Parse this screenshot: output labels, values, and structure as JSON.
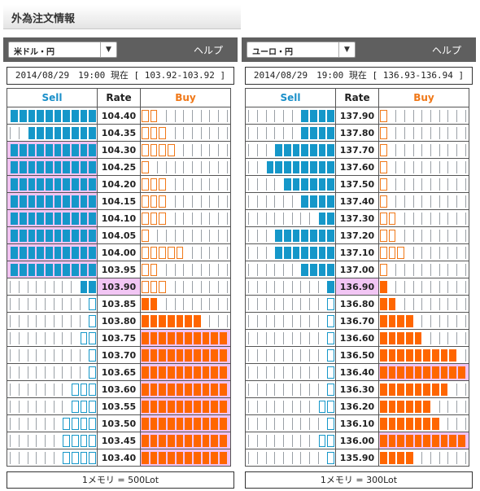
{
  "page": {
    "title": "外為注文情報"
  },
  "panels": [
    {
      "id": "usd",
      "pair_label": "米ドル・円",
      "help_label": "ヘルプ",
      "info": "2014/08/29　19:00 現在 [ 103.92-103.92 ]",
      "headers": {
        "sell": "Sell",
        "rate": "Rate",
        "buy": "Buy"
      },
      "current_rate": "103.90",
      "lot_text": "1メモリ = 500Lot",
      "rows": [
        {
          "rate": "104.40",
          "sell": 10,
          "buy": 2,
          "sell_style": "filled",
          "buy_style": "outline"
        },
        {
          "rate": "104.35",
          "sell": 8,
          "buy": 3,
          "sell_style": "filled",
          "buy_style": "outline"
        },
        {
          "rate": "104.30",
          "sell": 11,
          "buy": 4,
          "sell_style": "filled",
          "buy_style": "outline"
        },
        {
          "rate": "104.25",
          "sell": 11,
          "buy": 1,
          "sell_style": "filled",
          "buy_style": "outline"
        },
        {
          "rate": "104.20",
          "sell": 11,
          "buy": 3,
          "sell_style": "filled",
          "buy_style": "outline"
        },
        {
          "rate": "104.15",
          "sell": 11,
          "buy": 3,
          "sell_style": "filled",
          "buy_style": "outline"
        },
        {
          "rate": "104.10",
          "sell": 11,
          "buy": 3,
          "sell_style": "filled",
          "buy_style": "outline"
        },
        {
          "rate": "104.05",
          "sell": 11,
          "buy": 1,
          "sell_style": "filled",
          "buy_style": "outline"
        },
        {
          "rate": "104.00",
          "sell": 11,
          "buy": 5,
          "sell_style": "filled",
          "buy_style": "outline"
        },
        {
          "rate": "103.95",
          "sell": 11,
          "buy": 2,
          "sell_style": "filled",
          "buy_style": "outline"
        },
        {
          "rate": "103.90",
          "sell": 2,
          "buy": 3,
          "sell_style": "filled",
          "buy_style": "outline"
        },
        {
          "rate": "103.85",
          "sell": 1,
          "buy": 2,
          "sell_style": "outline",
          "buy_style": "filled"
        },
        {
          "rate": "103.80",
          "sell": 1,
          "buy": 7,
          "sell_style": "outline",
          "buy_style": "filled"
        },
        {
          "rate": "103.75",
          "sell": 2,
          "buy": 11,
          "sell_style": "outline",
          "buy_style": "filled"
        },
        {
          "rate": "103.70",
          "sell": 1,
          "buy": 11,
          "sell_style": "outline",
          "buy_style": "filled"
        },
        {
          "rate": "103.65",
          "sell": 1,
          "buy": 11,
          "sell_style": "outline",
          "buy_style": "filled"
        },
        {
          "rate": "103.60",
          "sell": 3,
          "buy": 11,
          "sell_style": "outline",
          "buy_style": "filled"
        },
        {
          "rate": "103.55",
          "sell": 3,
          "buy": 11,
          "sell_style": "outline",
          "buy_style": "filled"
        },
        {
          "rate": "103.50",
          "sell": 4,
          "buy": 11,
          "sell_style": "outline",
          "buy_style": "filled"
        },
        {
          "rate": "103.45",
          "sell": 4,
          "buy": 11,
          "sell_style": "outline",
          "buy_style": "filled"
        },
        {
          "rate": "103.40",
          "sell": 4,
          "buy": 11,
          "sell_style": "outline",
          "buy_style": "filled"
        }
      ]
    },
    {
      "id": "eur",
      "pair_label": "ユーロ・円",
      "help_label": "ヘルプ",
      "info": "2014/08/29　19:00 現在 [ 136.93-136.94 ]",
      "headers": {
        "sell": "Sell",
        "rate": "Rate",
        "buy": "Buy"
      },
      "current_rate": "136.90",
      "lot_text": "1メモリ = 300Lot",
      "rows": [
        {
          "rate": "137.90",
          "sell": 4,
          "buy": 1,
          "sell_style": "filled",
          "buy_style": "outline"
        },
        {
          "rate": "137.80",
          "sell": 4,
          "buy": 1,
          "sell_style": "filled",
          "buy_style": "outline"
        },
        {
          "rate": "137.70",
          "sell": 7,
          "buy": 1,
          "sell_style": "filled",
          "buy_style": "outline"
        },
        {
          "rate": "137.60",
          "sell": 8,
          "buy": 1,
          "sell_style": "filled",
          "buy_style": "outline"
        },
        {
          "rate": "137.50",
          "sell": 6,
          "buy": 1,
          "sell_style": "filled",
          "buy_style": "outline"
        },
        {
          "rate": "137.40",
          "sell": 4,
          "buy": 1,
          "sell_style": "filled",
          "buy_style": "outline"
        },
        {
          "rate": "137.30",
          "sell": 2,
          "buy": 2,
          "sell_style": "filled",
          "buy_style": "outline"
        },
        {
          "rate": "137.20",
          "sell": 7,
          "buy": 2,
          "sell_style": "filled",
          "buy_style": "outline"
        },
        {
          "rate": "137.10",
          "sell": 7,
          "buy": 3,
          "sell_style": "filled",
          "buy_style": "outline"
        },
        {
          "rate": "137.00",
          "sell": 4,
          "buy": 1,
          "sell_style": "filled",
          "buy_style": "outline"
        },
        {
          "rate": "136.90",
          "sell": 1,
          "buy": 1,
          "sell_style": "filled",
          "buy_style": "filled"
        },
        {
          "rate": "136.80",
          "sell": 1,
          "buy": 2,
          "sell_style": "outline",
          "buy_style": "filled"
        },
        {
          "rate": "136.70",
          "sell": 1,
          "buy": 4,
          "sell_style": "outline",
          "buy_style": "filled"
        },
        {
          "rate": "136.60",
          "sell": 1,
          "buy": 5,
          "sell_style": "outline",
          "buy_style": "filled"
        },
        {
          "rate": "136.50",
          "sell": 1,
          "buy": 9,
          "sell_style": "outline",
          "buy_style": "filled"
        },
        {
          "rate": "136.40",
          "sell": 1,
          "buy": 11,
          "sell_style": "outline",
          "buy_style": "filled"
        },
        {
          "rate": "136.30",
          "sell": 1,
          "buy": 8,
          "sell_style": "outline",
          "buy_style": "filled"
        },
        {
          "rate": "136.20",
          "sell": 2,
          "buy": 6,
          "sell_style": "outline",
          "buy_style": "filled"
        },
        {
          "rate": "136.10",
          "sell": 1,
          "buy": 7,
          "sell_style": "outline",
          "buy_style": "filled"
        },
        {
          "rate": "136.00",
          "sell": 2,
          "buy": 11,
          "sell_style": "outline",
          "buy_style": "filled"
        },
        {
          "rate": "135.90",
          "sell": 1,
          "buy": 4,
          "sell_style": "outline",
          "buy_style": "filled"
        }
      ]
    }
  ],
  "colors": {
    "sell": "#1597c9",
    "buy": "#ff6600",
    "current": "#f2c6f4"
  }
}
